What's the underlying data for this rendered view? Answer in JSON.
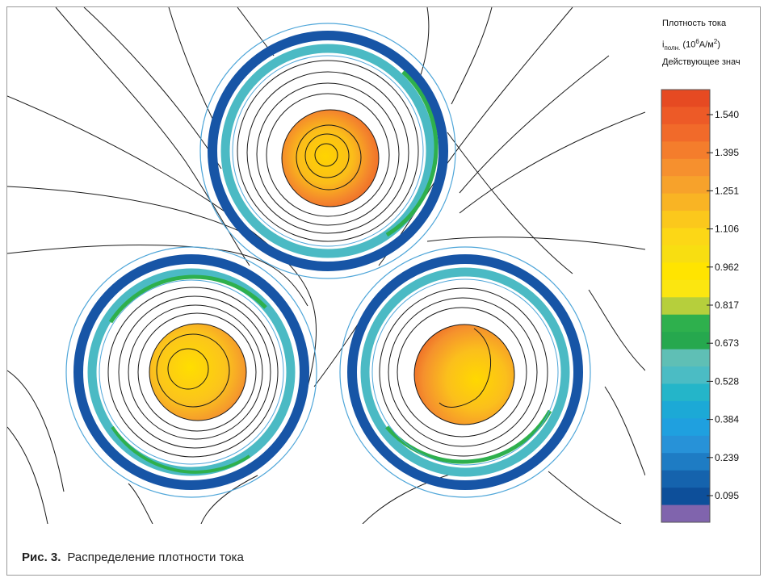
{
  "legend": {
    "title_line1": "Плотность тока",
    "title_line2_main": "i",
    "title_line2_sub": "полн.",
    "title_line2_units_pre": " (10",
    "title_line2_units_exp": "6",
    "title_line2_units_mid": "A/м",
    "title_line2_units_exp2": "2",
    "title_line2_units_post": ")",
    "title_line3": "Действующее знач",
    "levels": [
      "1.540",
      "1.395",
      "1.251",
      "1.106",
      "0.962",
      "0.817",
      "0.673",
      "0.528",
      "0.384",
      "0.239",
      "0.095"
    ],
    "colors": [
      "#e64a22",
      "#ed5a27",
      "#f16a2a",
      "#f47d2c",
      "#f6902e",
      "#f7a22b",
      "#f9b424",
      "#fbc81c",
      "#fcd716",
      "#f8de11",
      "#ffe400",
      "#fbe610",
      "#b6cf3c",
      "#2eb04d",
      "#26a84e",
      "#5fbfb5",
      "#4bbcc4",
      "#24b5c9",
      "#1ca9d6",
      "#1fa0df",
      "#2792d8",
      "#1e7cc4",
      "#1563ad",
      "#0d4f9a",
      "#8064ad"
    ]
  },
  "caption": {
    "label": "Рис. 3.",
    "text": "Распределение плотности тока"
  }
}
